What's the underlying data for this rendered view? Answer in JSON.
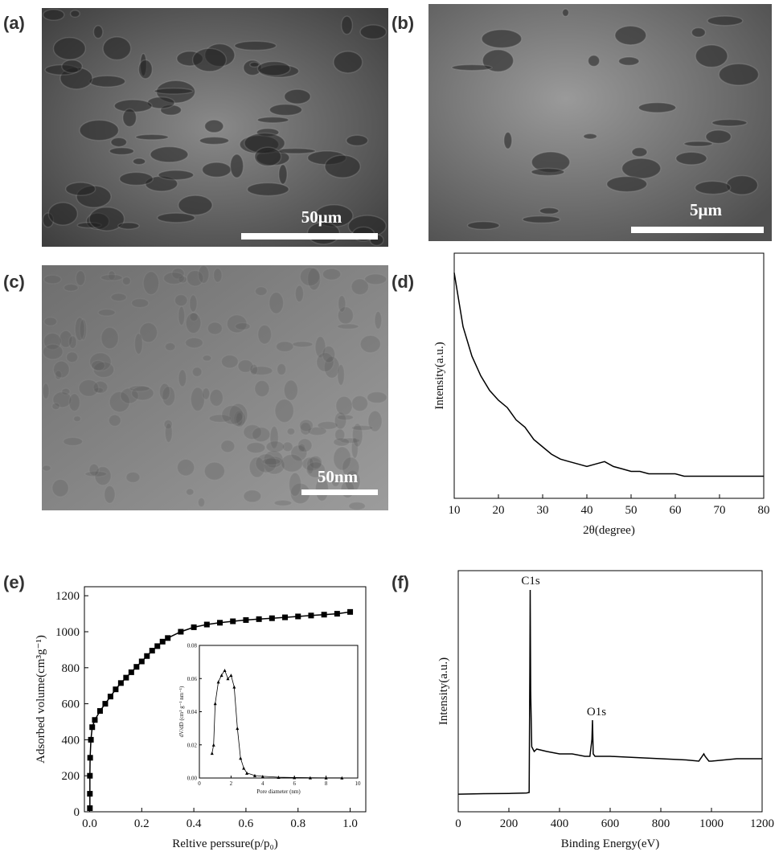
{
  "panels": [
    {
      "label": "(a)",
      "scale_bar": "50μm"
    },
    {
      "label": "(b)",
      "scale_bar": "5μm"
    },
    {
      "label": "(c)",
      "scale_bar": "50nm"
    }
  ],
  "chart_data": [
    {
      "type": "line",
      "label": "(d)",
      "xlabel": "2θ(degree)",
      "ylabel": "Intensity(a.u.)",
      "xlim": [
        10,
        80
      ],
      "ylim": [
        0,
        100
      ],
      "xticks": [
        10,
        20,
        30,
        40,
        50,
        60,
        70,
        80
      ],
      "x": [
        10,
        12,
        14,
        16,
        18,
        20,
        22,
        24,
        26,
        28,
        30,
        32,
        34,
        36,
        38,
        40,
        42,
        44,
        46,
        48,
        50,
        52,
        54,
        56,
        58,
        60,
        62,
        64,
        66,
        68,
        70,
        72,
        74,
        76,
        78,
        80
      ],
      "series": [
        {
          "color": "#000000",
          "values": [
            92,
            70,
            58,
            50,
            44,
            40,
            37,
            32,
            29,
            24,
            21,
            18,
            16,
            15,
            14,
            13,
            14,
            15,
            13,
            12,
            11,
            11,
            10,
            10,
            10,
            10,
            9,
            9,
            9,
            9,
            9,
            9,
            9,
            9,
            9,
            9
          ]
        }
      ]
    },
    {
      "type": "line",
      "label": "(e)",
      "xlabel": "Reltive perssure(p/p₀)",
      "ylabel": "Adsorbed volume(cm³g⁻¹)",
      "xlim": [
        -0.02,
        1.06
      ],
      "ylim": [
        0,
        1250
      ],
      "xticks": [
        {
          "value": 0,
          "label": "0.0"
        },
        0.2,
        0.4,
        0.6,
        0.8,
        {
          "value": 1,
          "label": "1.0"
        }
      ],
      "yticks": [
        0,
        200,
        400,
        600,
        800,
        1000,
        1200
      ],
      "marker": "square",
      "x": [
        0.001,
        0.001,
        0.001,
        0.002,
        0.005,
        0.01,
        0.02,
        0.04,
        0.06,
        0.08,
        0.1,
        0.12,
        0.14,
        0.16,
        0.18,
        0.2,
        0.22,
        0.24,
        0.26,
        0.28,
        0.3,
        0.35,
        0.4,
        0.45,
        0.5,
        0.55,
        0.6,
        0.65,
        0.7,
        0.75,
        0.8,
        0.85,
        0.9,
        0.95,
        1.0
      ],
      "series": [
        {
          "color": "#000000",
          "values": [
            20,
            100,
            200,
            300,
            400,
            470,
            510,
            560,
            600,
            640,
            680,
            715,
            745,
            775,
            805,
            835,
            865,
            895,
            920,
            945,
            965,
            1000,
            1025,
            1040,
            1050,
            1058,
            1065,
            1070,
            1075,
            1080,
            1085,
            1090,
            1095,
            1100,
            1110
          ]
        }
      ],
      "inset": {
        "type": "line",
        "xlabel": "Pore diameter (nm)",
        "ylabel": "dV/dD (cm³ g⁻¹ nm⁻¹)",
        "xlim": [
          0,
          10
        ],
        "ylim": [
          0,
          0.08
        ],
        "xticks": [
          0,
          2,
          4,
          6,
          8,
          10
        ],
        "yticks": [
          {
            "value": 0,
            "label": "0.00"
          },
          0.02,
          0.04,
          0.06,
          {
            "value": 0.08,
            "label": "0.08"
          }
        ],
        "marker": "triangle",
        "x": [
          0.8,
          0.9,
          1.0,
          1.2,
          1.4,
          1.6,
          1.8,
          2.0,
          2.2,
          2.4,
          2.6,
          2.8,
          3.0,
          3.5,
          4,
          5,
          6,
          7,
          8,
          9
        ],
        "series": [
          {
            "color": "#000000",
            "values": [
              0.015,
              0.02,
              0.045,
              0.058,
              0.062,
              0.065,
              0.06,
              0.062,
              0.055,
              0.03,
              0.012,
              0.006,
              0.003,
              0.0015,
              0.001,
              0.0005,
              0.0003,
              0.0002,
              0.0001,
              0.0001
            ]
          }
        ]
      }
    },
    {
      "type": "line",
      "label": "(f)",
      "xlabel": "Binding Energy(eV)",
      "ylabel": "Intensity(a.u.)",
      "xlim": [
        0,
        1200
      ],
      "ylim": [
        0,
        100
      ],
      "xticks": [
        0,
        200,
        400,
        600,
        800,
        1000,
        1200
      ],
      "annotations": [
        "C1s",
        "O1s"
      ],
      "x": [
        0,
        100,
        200,
        270,
        280,
        283,
        284,
        286,
        290,
        300,
        310,
        350,
        400,
        450,
        500,
        520,
        528,
        530,
        533,
        540,
        600,
        700,
        800,
        900,
        950,
        970,
        975,
        990,
        1000,
        1100,
        1200
      ],
      "series": [
        {
          "color": "#000000",
          "values": [
            7.3,
            7.5,
            7.6,
            7.8,
            8,
            60,
            92,
            50,
            27,
            25,
            26,
            25,
            24,
            24,
            23,
            23,
            30,
            38,
            24,
            23,
            23,
            22.5,
            22,
            21.5,
            21,
            24,
            23,
            21,
            21,
            22,
            22
          ]
        }
      ]
    }
  ]
}
